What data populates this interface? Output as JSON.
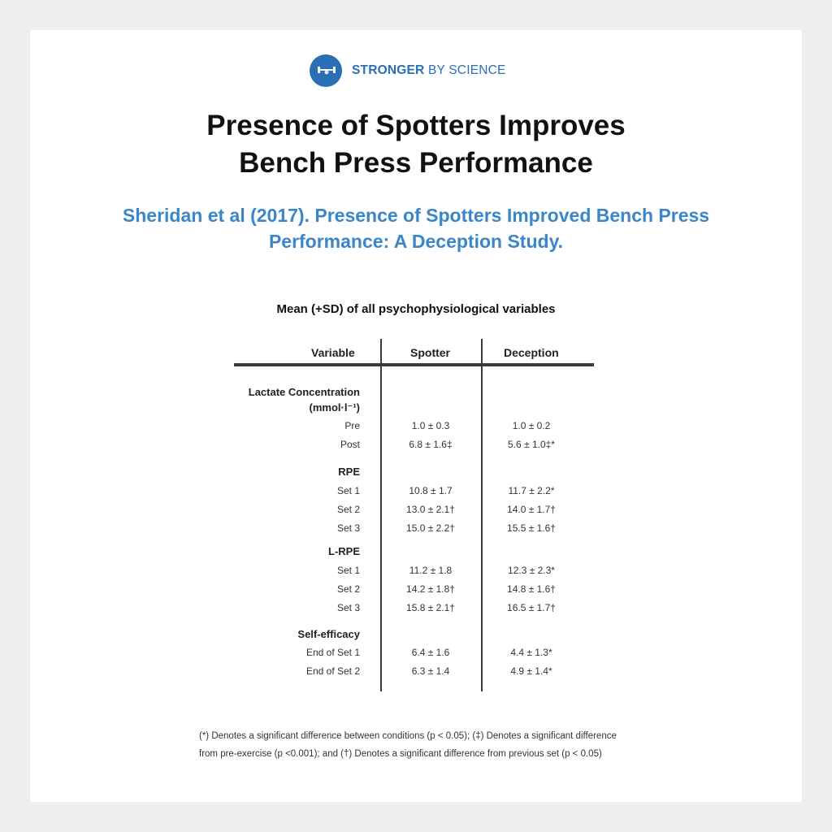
{
  "brand": {
    "strong": "STRONGER",
    "light": "BY SCIENCE"
  },
  "title_line1": "Presence of Spotters Improves",
  "title_line2": "Bench Press Performance",
  "subtitle_line1": "Sheridan et al (2017). Presence of Spotters Improved Bench Press",
  "subtitle_line2": "Performance: A Deception Study.",
  "table": {
    "caption": "Mean (+SD) of all psychophysiological variables",
    "headers": {
      "variable": "Variable",
      "spotter": "Spotter",
      "deception": "Deception"
    },
    "groups": [
      {
        "name_line1": "Lactate Concentration",
        "name_line2": "(mmol·l⁻¹)",
        "rows": [
          {
            "label": "Pre",
            "spotter": "1.0 ± 0.3",
            "deception": "1.0 ± 0.2"
          },
          {
            "label": "Post",
            "spotter": "6.8 ± 1.6‡",
            "deception": "5.6 ± 1.0‡*"
          }
        ]
      },
      {
        "name_line1": "RPE",
        "rows": [
          {
            "label": "Set 1",
            "spotter": "10.8 ± 1.7",
            "deception": "11.7 ± 2.2*"
          },
          {
            "label": "Set 2",
            "spotter": "13.0 ± 2.1†",
            "deception": "14.0 ± 1.7†"
          },
          {
            "label": "Set 3",
            "spotter": "15.0 ± 2.2†",
            "deception": "15.5 ± 1.6†"
          }
        ]
      },
      {
        "name_line1": "L-RPE",
        "rows": [
          {
            "label": "Set 1",
            "spotter": "11.2 ± 1.8",
            "deception": "12.3 ± 2.3*"
          },
          {
            "label": "Set 2",
            "spotter": "14.2 ± 1.8†",
            "deception": "14.8 ± 1.6†"
          },
          {
            "label": "Set 3",
            "spotter": "15.8 ± 2.1†",
            "deception": "16.5 ± 1.7†"
          }
        ]
      },
      {
        "name_line1": "Self-efficacy",
        "rows": [
          {
            "label": "End of Set 1",
            "spotter": "6.4 ± 1.6",
            "deception": "4.4 ± 1.3*"
          },
          {
            "label": "End of Set 2",
            "spotter": "6.3 ± 1.4",
            "deception": "4.9 ± 1.4*"
          }
        ]
      }
    ]
  },
  "footnote_line1": "(*) Denotes a significant difference between conditions (p < 0.05); (‡) Denotes a significant difference",
  "footnote_line2": "from pre-exercise (p <0.001); and (†) Denotes a significant difference from previous set (p < 0.05)",
  "colors": {
    "brand_blue": "#2a6fb6",
    "subtitle_blue": "#3a86c8",
    "rule": "#3a3a3a"
  }
}
